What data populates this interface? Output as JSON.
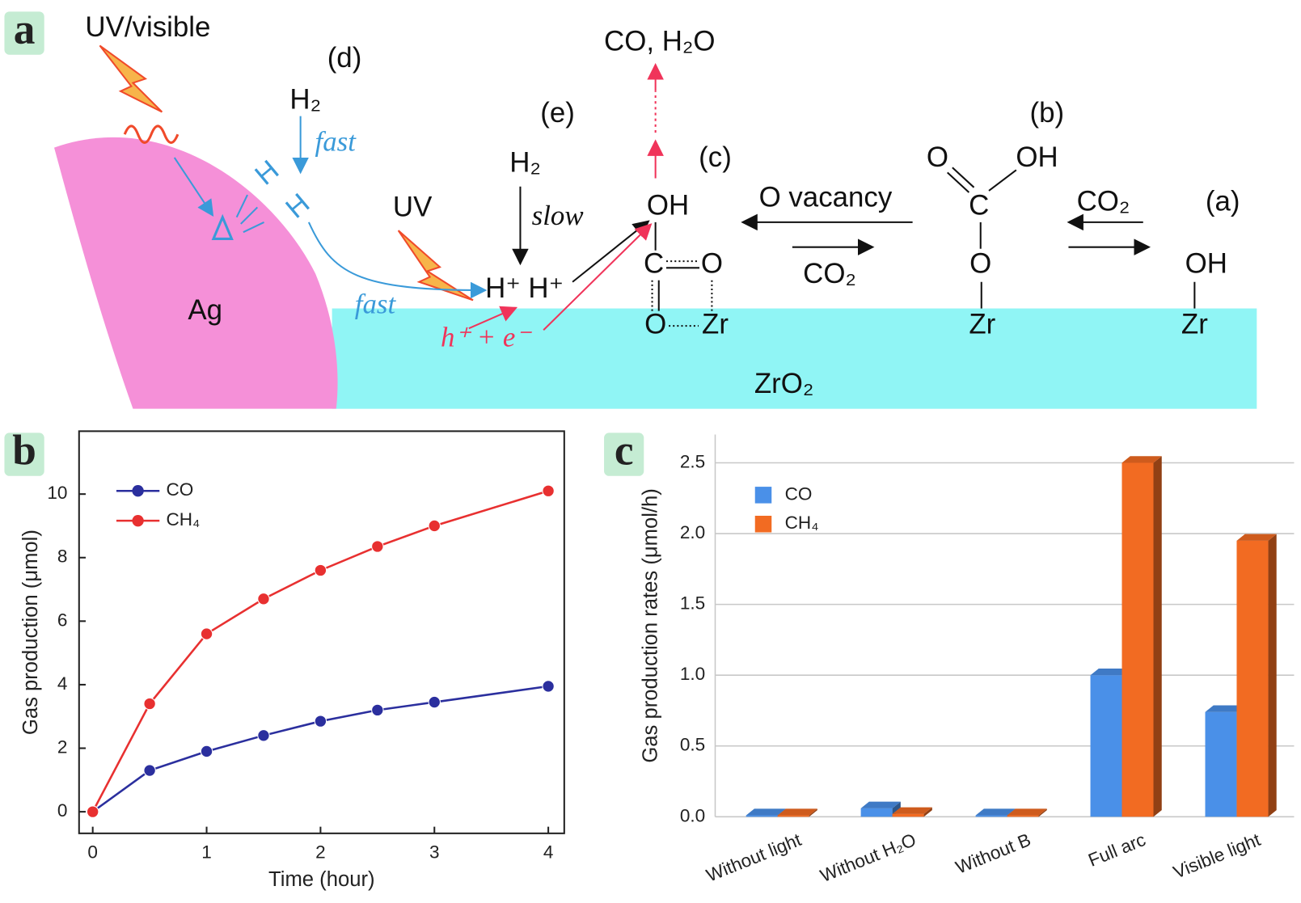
{
  "panel_labels": [
    "a",
    "b",
    "c"
  ],
  "diagram": {
    "labels": [
      "UV/visible",
      "(d)",
      "H₂",
      "fast",
      "H",
      "H",
      "UV",
      "fast",
      "Ag",
      "(e)",
      "H₂",
      "slow",
      "H⁺ H⁺",
      "h⁺ + e⁻",
      "CO, H₂O",
      "(c)",
      "OH",
      "C",
      "O",
      "O",
      "Zr",
      "O vacancy",
      "CO₂",
      "(b)",
      "O",
      "OH",
      "C",
      "O",
      "Zr",
      "CO₂",
      "(a)",
      "OH",
      "Zr",
      "ZrO₂"
    ]
  },
  "chart_data": [
    {
      "type": "line",
      "x_label": "Time (hour)",
      "y_label": "Gas production (μmol)",
      "x": [
        0,
        0.5,
        1,
        1.5,
        2,
        2.5,
        3,
        4
      ],
      "series": [
        {
          "name": "CO",
          "color": "#2b2f9e",
          "values": [
            0,
            1.3,
            1.9,
            2.4,
            2.85,
            3.2,
            3.45,
            3.95
          ]
        },
        {
          "name": "CH₄",
          "color": "#e83030",
          "values": [
            0,
            3.4,
            5.6,
            6.7,
            7.6,
            8.35,
            9.0,
            10.1
          ]
        }
      ],
      "xlim": [
        -0.12,
        4.14
      ],
      "ylim": [
        -0.68,
        11.98
      ],
      "xticks": [
        0,
        1,
        2,
        3,
        4
      ],
      "yticks": [
        0,
        2,
        4,
        6,
        8,
        10
      ]
    },
    {
      "type": "bar",
      "y_label": "Gas production rates (μmol/h)",
      "categories": [
        "Without light",
        "Without H₂O",
        "Without B",
        "Full arc",
        "Visible light"
      ],
      "series": [
        {
          "name": "CO",
          "color": "#4a90e8",
          "values": [
            0.01,
            0.06,
            0.01,
            1.0,
            0.74
          ]
        },
        {
          "name": "CH₄",
          "color": "#f26b22",
          "values": [
            0.01,
            0.02,
            0.01,
            2.5,
            1.95
          ]
        }
      ],
      "ylim": [
        0,
        2.7
      ],
      "yticks": [
        {
          "value": 0,
          "label": "0.0"
        },
        0.5,
        {
          "value": 1,
          "label": "1.0"
        },
        1.5,
        {
          "value": 2,
          "label": "2.0"
        },
        2.5
      ],
      "grid": true
    }
  ]
}
